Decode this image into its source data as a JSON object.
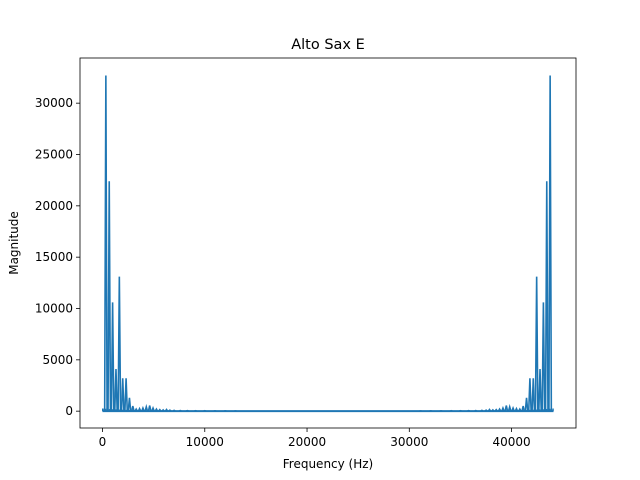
{
  "chart_data": {
    "type": "line",
    "title": "Alto Sax E",
    "xlabel": "Frequency (Hz)",
    "ylabel": "Magnitude",
    "xlim": [
      -2200,
      46300
    ],
    "ylim": [
      -1640,
      34400
    ],
    "xticks": [
      0,
      10000,
      20000,
      30000,
      40000
    ],
    "xtick_labels": [
      "0",
      "10000",
      "20000",
      "30000",
      "40000"
    ],
    "yticks": [
      0,
      5000,
      10000,
      15000,
      20000,
      25000,
      30000
    ],
    "ytick_labels": [
      "0",
      "5000",
      "10000",
      "15000",
      "20000",
      "25000",
      "30000"
    ],
    "grid": false,
    "legend": "none",
    "color": "#1f77b4",
    "series": [
      {
        "peaks": [
          {
            "x": 329,
            "y": 32700
          },
          {
            "x": 659,
            "y": 22400
          },
          {
            "x": 988,
            "y": 10600
          },
          {
            "x": 1318,
            "y": 4100
          },
          {
            "x": 1647,
            "y": 13100
          },
          {
            "x": 1977,
            "y": 3200
          },
          {
            "x": 2306,
            "y": 3200
          },
          {
            "x": 2636,
            "y": 1300
          },
          {
            "x": 2965,
            "y": 500
          },
          {
            "x": 3295,
            "y": 200
          },
          {
            "x": 3624,
            "y": 250
          },
          {
            "x": 3954,
            "y": 300
          },
          {
            "x": 4283,
            "y": 420
          },
          {
            "x": 4613,
            "y": 550
          },
          {
            "x": 4942,
            "y": 300
          },
          {
            "x": 5272,
            "y": 200
          },
          {
            "x": 5601,
            "y": 150
          },
          {
            "x": 5931,
            "y": 120
          },
          {
            "x": 6260,
            "y": 160
          },
          {
            "x": 6590,
            "y": 100
          },
          {
            "x": 7000,
            "y": 80
          },
          {
            "x": 7600,
            "y": 60
          },
          {
            "x": 8300,
            "y": 50
          },
          {
            "x": 9100,
            "y": 40
          },
          {
            "x": 10000,
            "y": 40
          },
          {
            "x": 11000,
            "y": 30
          },
          {
            "x": 12000,
            "y": 30
          },
          {
            "x": 13000,
            "y": 20
          }
        ],
        "mirrored_about": 44100
      }
    ]
  }
}
